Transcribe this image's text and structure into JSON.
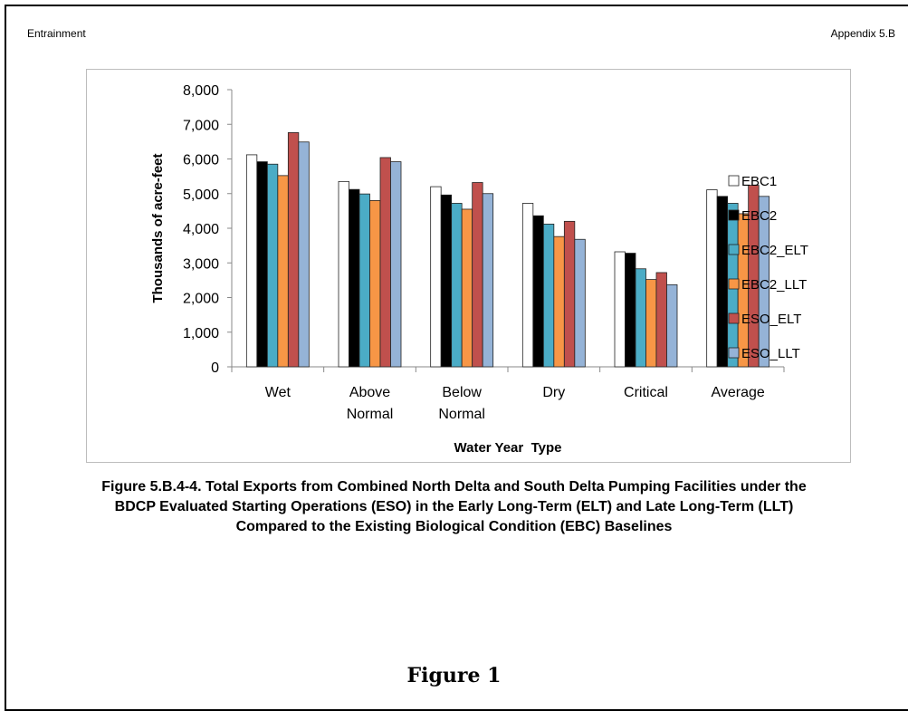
{
  "header": {
    "left": "Entrainment",
    "right": "Appendix 5.B"
  },
  "caption": {
    "lines": [
      "Figure 5.B.4-4. Total Exports from Combined North Delta and South Delta Pumping Facilities under the",
      "BDCP Evaluated Starting Operations (ESO) in the Early Long-Term (ELT) and Late Long-Term (LLT)",
      "Compared to the Existing Biological Condition (EBC) Baselines"
    ]
  },
  "figure_label": "Figure 1",
  "chart_data": {
    "type": "bar",
    "categories": [
      [
        "Wet"
      ],
      [
        "Above",
        "Normal"
      ],
      [
        "Below",
        "Normal"
      ],
      [
        "Dry"
      ],
      [
        "Critical"
      ],
      [
        "Average"
      ]
    ],
    "series": [
      {
        "name": "EBC1",
        "color": "#ffffff",
        "values": [
          6120,
          5350,
          5200,
          4720,
          3320,
          5110
        ]
      },
      {
        "name": "EBC2",
        "color": "#000000",
        "values": [
          5920,
          5120,
          4960,
          4360,
          3280,
          4920
        ]
      },
      {
        "name": "EBC2_ELT",
        "color": "#4bacc6",
        "values": [
          5850,
          4990,
          4720,
          4120,
          2830,
          4720
        ]
      },
      {
        "name": "EBC2_LLT",
        "color": "#f79646",
        "values": [
          5520,
          4800,
          4550,
          3760,
          2520,
          4420
        ]
      },
      {
        "name": "ESO_ELT",
        "color": "#c0504d",
        "values": [
          6760,
          6040,
          5320,
          4200,
          2720,
          5240
        ]
      },
      {
        "name": "ESO_LLT",
        "color": "#95b3d7",
        "values": [
          6490,
          5920,
          5000,
          3680,
          2370,
          4920
        ]
      }
    ],
    "ylabel": "Thousands of acre-feet",
    "xlabel": "Water Year  Type",
    "ylim": [
      0,
      8000
    ],
    "yticks": [
      "0",
      "1,000",
      "2,000",
      "3,000",
      "4,000",
      "5,000",
      "6,000",
      "7,000",
      "8,000"
    ],
    "grid": false,
    "legend_position": "right"
  }
}
